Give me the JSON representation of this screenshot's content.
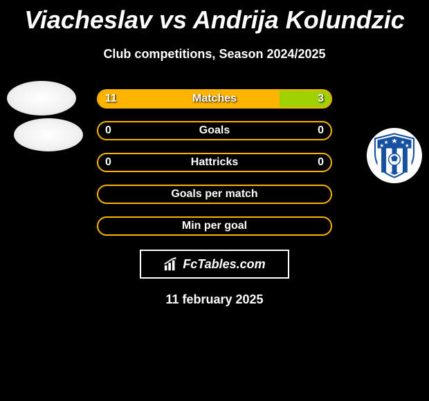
{
  "title": "Viacheslav vs Andrija Kolundzic",
  "subtitle": "Club competitions, Season 2024/2025",
  "date": "11 february 2025",
  "logo_text": "FcTables.com",
  "colors": {
    "background": "#000000",
    "text": "#ffffff",
    "bar1_border": "#ffb400",
    "bar1_left_fill": "#ffb400",
    "bar1_right_fill": "#9fd000",
    "bar2_border": "#ffb400",
    "bar3_border": "#ffb400",
    "bar4_border": "#ffb400",
    "bar5_border": "#ffb400"
  },
  "stats": [
    {
      "label": "Matches",
      "left_value": "11",
      "right_value": "3",
      "left_pct": 78,
      "right_pct": 22,
      "left_color": "#ffb400",
      "right_color": "#9fd000",
      "border": "#ffb400"
    },
    {
      "label": "Goals",
      "left_value": "0",
      "right_value": "0",
      "left_pct": 0,
      "right_pct": 0,
      "left_color": "#ffb400",
      "right_color": "#9fd000",
      "border": "#ffb400"
    },
    {
      "label": "Hattricks",
      "left_value": "0",
      "right_value": "0",
      "left_pct": 0,
      "right_pct": 0,
      "left_color": "#ffb400",
      "right_color": "#9fd000",
      "border": "#ffb400"
    },
    {
      "label": "Goals per match",
      "left_value": "",
      "right_value": "",
      "left_pct": 0,
      "right_pct": 0,
      "left_color": "#ffb400",
      "right_color": "#9fd000",
      "border": "#ffb400"
    },
    {
      "label": "Min per goal",
      "left_value": "",
      "right_value": "",
      "left_pct": 0,
      "right_pct": 0,
      "left_color": "#ffb400",
      "right_color": "#9fd000",
      "border": "#ffb400"
    }
  ]
}
